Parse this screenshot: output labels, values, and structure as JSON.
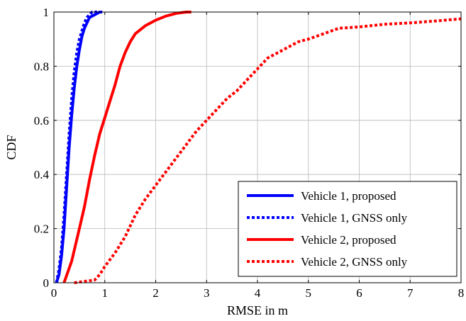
{
  "chart_data": {
    "type": "line",
    "xlabel": "RMSE in m",
    "ylabel": "CDF",
    "xlim": [
      0,
      8
    ],
    "ylim": [
      0,
      1
    ],
    "xticks": [
      "0",
      "1",
      "2",
      "3",
      "4",
      "5",
      "6",
      "7",
      "8"
    ],
    "yticks": [
      "0",
      "0.2",
      "0.4",
      "0.6",
      "0.8",
      "1"
    ],
    "grid": true,
    "legend_position": "bottom-right",
    "series": [
      {
        "name": "Vehicle 1, proposed",
        "color": "#0000ff",
        "style": "solid",
        "x": [
          0.05,
          0.1,
          0.15,
          0.2,
          0.25,
          0.3,
          0.35,
          0.4,
          0.45,
          0.5,
          0.55,
          0.6,
          0.65,
          0.7,
          0.8,
          0.9,
          0.95
        ],
        "y": [
          0.0,
          0.03,
          0.1,
          0.2,
          0.35,
          0.5,
          0.62,
          0.72,
          0.8,
          0.86,
          0.91,
          0.94,
          0.96,
          0.98,
          0.99,
          1.0,
          1.0
        ]
      },
      {
        "name": "Vehicle 1, GNSS only",
        "color": "#0000ff",
        "style": "dotted",
        "x": [
          0.05,
          0.1,
          0.15,
          0.2,
          0.25,
          0.3,
          0.35,
          0.4,
          0.45,
          0.5,
          0.55,
          0.6,
          0.65,
          0.7,
          0.75,
          0.85
        ],
        "y": [
          0.0,
          0.05,
          0.13,
          0.25,
          0.4,
          0.55,
          0.68,
          0.78,
          0.85,
          0.9,
          0.93,
          0.96,
          0.98,
          0.99,
          1.0,
          1.0
        ]
      },
      {
        "name": "Vehicle 2, proposed",
        "color": "#ff0000",
        "style": "solid",
        "x": [
          0.2,
          0.35,
          0.5,
          0.6,
          0.7,
          0.8,
          0.9,
          1.0,
          1.1,
          1.2,
          1.3,
          1.4,
          1.5,
          1.6,
          1.8,
          2.0,
          2.2,
          2.4,
          2.6,
          2.7
        ],
        "y": [
          0.0,
          0.08,
          0.2,
          0.28,
          0.38,
          0.47,
          0.55,
          0.61,
          0.67,
          0.73,
          0.8,
          0.85,
          0.89,
          0.92,
          0.95,
          0.97,
          0.985,
          0.995,
          1.0,
          1.0
        ]
      },
      {
        "name": "Vehicle 2, GNSS only",
        "color": "#ff0000",
        "style": "dotted",
        "x": [
          0.4,
          0.6,
          0.8,
          0.9,
          1.0,
          1.2,
          1.4,
          1.6,
          1.8,
          2.0,
          2.2,
          2.4,
          2.6,
          2.8,
          3.0,
          3.2,
          3.4,
          3.6,
          3.8,
          4.0,
          4.2,
          4.5,
          4.8,
          5.0,
          5.3,
          5.6,
          6.0,
          6.5,
          7.0,
          7.5,
          8.0
        ],
        "y": [
          0.0,
          0.005,
          0.01,
          0.03,
          0.06,
          0.11,
          0.17,
          0.25,
          0.31,
          0.36,
          0.41,
          0.46,
          0.51,
          0.56,
          0.6,
          0.64,
          0.68,
          0.71,
          0.75,
          0.79,
          0.83,
          0.86,
          0.89,
          0.9,
          0.92,
          0.94,
          0.945,
          0.955,
          0.96,
          0.967,
          0.975
        ]
      }
    ]
  }
}
